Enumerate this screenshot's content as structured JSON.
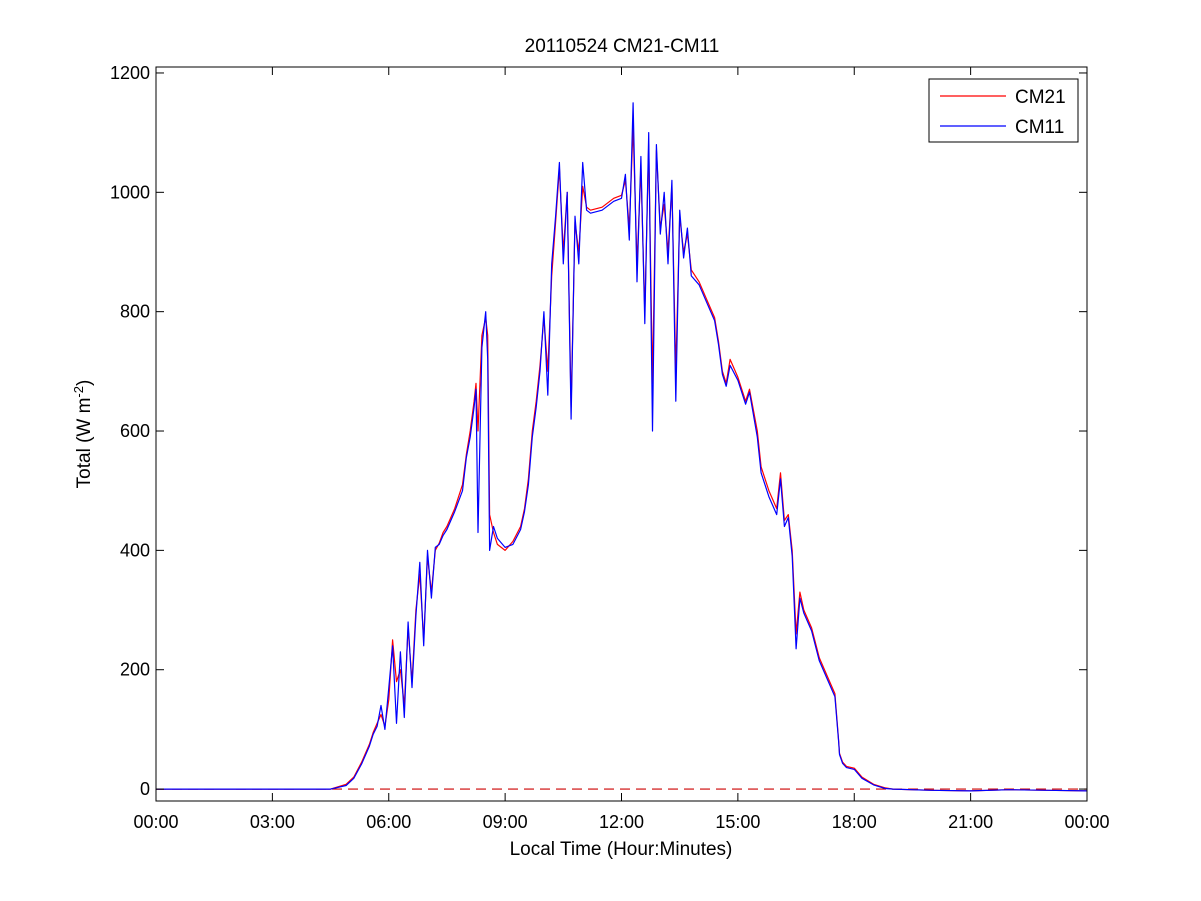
{
  "chart_data": {
    "type": "line",
    "title": "20110524 CM21-CM11",
    "xlabel": "Local Time (Hour:Minutes)",
    "ylabel": {
      "base": "Total (W m",
      "sup": "-2",
      "close": ")"
    },
    "xlim": [
      0,
      24
    ],
    "ylim": [
      -20,
      1210
    ],
    "x_ticks": [
      0,
      3,
      6,
      9,
      12,
      15,
      18,
      21,
      24
    ],
    "x_tick_labels": [
      "00:00",
      "03:00",
      "06:00",
      "09:00",
      "12:00",
      "15:00",
      "18:00",
      "21:00",
      "00:00"
    ],
    "y_ticks": [
      0,
      200,
      400,
      600,
      800,
      1000,
      1200
    ],
    "y_tick_labels": [
      "0",
      "200",
      "400",
      "600",
      "800",
      "1000",
      "1200"
    ],
    "grid": false,
    "legend_position": "top-right",
    "reference_line": {
      "y": 0,
      "style": "dashed",
      "color": "#cc0000"
    },
    "series": [
      {
        "name": "CM21",
        "color": "#ff0000",
        "x": [
          0,
          4.5,
          4.9,
          5.1,
          5.3,
          5.5,
          5.6,
          5.7,
          5.8,
          5.9,
          6.0,
          6.1,
          6.2,
          6.3,
          6.4,
          6.5,
          6.6,
          6.7,
          6.8,
          6.9,
          7.0,
          7.1,
          7.2,
          7.3,
          7.4,
          7.5,
          7.7,
          7.9,
          8.0,
          8.1,
          8.2,
          8.25,
          8.3,
          8.4,
          8.5,
          8.55,
          8.6,
          8.7,
          8.8,
          9.0,
          9.2,
          9.4,
          9.5,
          9.6,
          9.7,
          9.8,
          9.9,
          10.0,
          10.1,
          10.2,
          10.3,
          10.4,
          10.5,
          10.6,
          10.7,
          10.8,
          10.9,
          11.0,
          11.1,
          11.2,
          11.5,
          11.8,
          12.0,
          12.1,
          12.2,
          12.3,
          12.4,
          12.5,
          12.6,
          12.7,
          12.8,
          12.9,
          13.0,
          13.1,
          13.2,
          13.3,
          13.4,
          13.5,
          13.6,
          13.7,
          13.8,
          14.0,
          14.2,
          14.4,
          14.5,
          14.6,
          14.7,
          14.8,
          15.0,
          15.2,
          15.3,
          15.5,
          15.6,
          15.8,
          16.0,
          16.1,
          16.2,
          16.3,
          16.4,
          16.5,
          16.6,
          16.7,
          16.9,
          17.1,
          17.3,
          17.5,
          17.6,
          17.62,
          17.7,
          17.8,
          18.0,
          18.2,
          18.5,
          18.8,
          19.0,
          20.0,
          21.0,
          22.0,
          23.0,
          24.0
        ],
        "y": [
          0,
          0,
          8,
          20,
          45,
          75,
          95,
          110,
          125,
          105,
          150,
          250,
          180,
          200,
          140,
          270,
          180,
          300,
          360,
          250,
          390,
          330,
          400,
          412,
          430,
          440,
          470,
          510,
          560,
          600,
          650,
          680,
          600,
          760,
          790,
          760,
          460,
          430,
          410,
          400,
          415,
          440,
          470,
          520,
          600,
          650,
          710,
          790,
          700,
          860,
          950,
          1040,
          900,
          1000,
          640,
          950,
          900,
          1010,
          975,
          970,
          975,
          990,
          995,
          1020,
          940,
          1110,
          880,
          1040,
          800,
          1080,
          680,
          1070,
          940,
          980,
          900,
          1010,
          700,
          960,
          900,
          930,
          870,
          850,
          820,
          790,
          750,
          700,
          680,
          720,
          690,
          650,
          670,
          600,
          540,
          500,
          470,
          530,
          450,
          460,
          400,
          260,
          330,
          300,
          270,
          220,
          190,
          160,
          80,
          60,
          45,
          38,
          35,
          20,
          8,
          2,
          0,
          -2,
          -3,
          -1,
          -2,
          -3
        ]
      },
      {
        "name": "CM11",
        "color": "#0000ff",
        "x": [
          0,
          4.5,
          4.9,
          5.1,
          5.3,
          5.5,
          5.6,
          5.7,
          5.8,
          5.9,
          6.0,
          6.1,
          6.2,
          6.3,
          6.4,
          6.5,
          6.6,
          6.7,
          6.8,
          6.9,
          7.0,
          7.1,
          7.2,
          7.3,
          7.4,
          7.5,
          7.7,
          7.9,
          8.0,
          8.1,
          8.2,
          8.25,
          8.3,
          8.4,
          8.5,
          8.55,
          8.6,
          8.7,
          8.8,
          9.0,
          9.2,
          9.4,
          9.5,
          9.6,
          9.7,
          9.8,
          9.9,
          10.0,
          10.1,
          10.2,
          10.3,
          10.4,
          10.5,
          10.6,
          10.7,
          10.8,
          10.9,
          11.0,
          11.1,
          11.2,
          11.5,
          11.8,
          12.0,
          12.1,
          12.2,
          12.3,
          12.4,
          12.5,
          12.6,
          12.7,
          12.8,
          12.9,
          13.0,
          13.1,
          13.2,
          13.3,
          13.4,
          13.5,
          13.6,
          13.7,
          13.8,
          14.0,
          14.2,
          14.4,
          14.5,
          14.6,
          14.7,
          14.8,
          15.0,
          15.2,
          15.3,
          15.5,
          15.6,
          15.8,
          16.0,
          16.1,
          16.2,
          16.3,
          16.4,
          16.5,
          16.6,
          16.7,
          16.9,
          17.1,
          17.3,
          17.5,
          17.6,
          17.62,
          17.7,
          17.8,
          18.0,
          18.2,
          18.5,
          18.8,
          19.0,
          20.0,
          21.0,
          22.0,
          23.0,
          24.0
        ],
        "y": [
          0,
          0,
          6,
          18,
          42,
          72,
          92,
          105,
          140,
          100,
          170,
          240,
          110,
          230,
          120,
          280,
          170,
          290,
          380,
          240,
          400,
          320,
          405,
          410,
          425,
          435,
          465,
          500,
          555,
          590,
          640,
          670,
          430,
          740,
          800,
          720,
          400,
          440,
          420,
          405,
          410,
          435,
          465,
          510,
          590,
          640,
          700,
          800,
          660,
          880,
          960,
          1050,
          880,
          1000,
          620,
          960,
          880,
          1050,
          970,
          965,
          970,
          985,
          990,
          1030,
          920,
          1150,
          850,
          1060,
          780,
          1100,
          600,
          1080,
          930,
          1000,
          880,
          1020,
          650,
          970,
          890,
          940,
          860,
          845,
          815,
          785,
          745,
          695,
          675,
          710,
          685,
          645,
          665,
          590,
          530,
          490,
          460,
          520,
          440,
          455,
          390,
          235,
          320,
          295,
          265,
          215,
          185,
          155,
          78,
          58,
          43,
          36,
          33,
          18,
          7,
          1,
          0,
          -2,
          -3,
          -1,
          -2,
          -3
        ]
      }
    ]
  }
}
